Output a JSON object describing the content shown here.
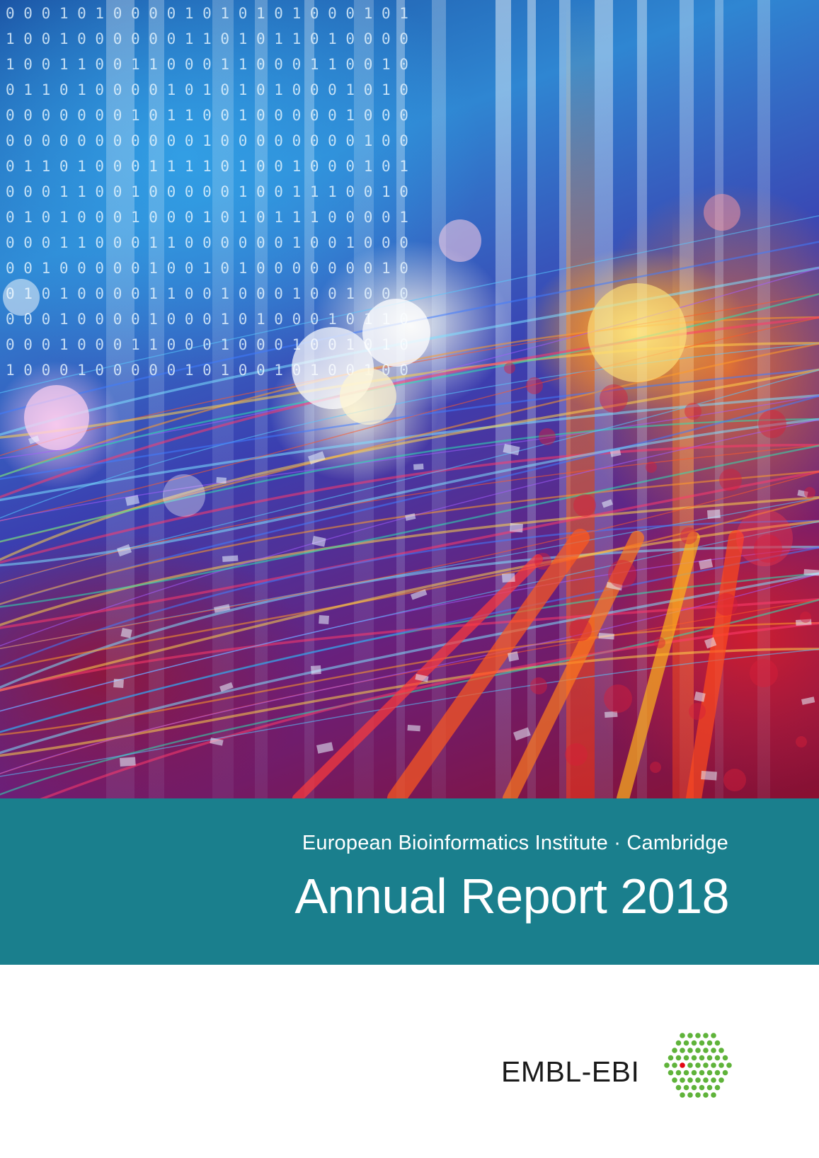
{
  "cover": {
    "subtitle": "European Bioinformatics Institute · Cambridge",
    "title": "Annual Report 2018",
    "band_color": "#1a7f8d"
  },
  "logo": {
    "text": "EMBL-EBI",
    "mark_color": "#5fb33a",
    "mark_accent_color": "#e30613",
    "icon": "hexagon-dot-grid-icon"
  },
  "image": {
    "binary_rows": [
      "0 0 0 1 0 1 0 0 0 0 1 0 1 0 1 0 1 0 0 0 1 0 1",
      "1 0 0 1 0 0 0 0 0 0 1 1 0 1 0 1 1 0 1 0 0 0 0",
      "1 0 0 1 1 0 0 1 1 0 0 0 1 1 0 0 0 1 1 0 0 1 0",
      "0 1 1 0 1 0 0 0 0 1 0 1 0 1 0 1 0 0 0 1 0 1 0",
      "0 0 0 0 0 0 0 1 0 1 1 0 0 1 0 0 0 0 0 1 0 0 0",
      "0 0 0 0 0 0 0 0 0 0 0 1 0 0 0 0 0 0 0 0 1 0 0",
      "0 1 1 0 1 0 0 0 1 1 1 1 0 1 0 0 1 0 0 0 1 0 1",
      "0 0 0 1 1 0 0 1 0 0 0 0 0 1 0 0 1 1 1 0 0 1 0",
      "0 1 0 1 0 0 0 1 0 0 0 1 0 1 0 1 1 1 0 0 0 0 1",
      "0 0 0 1 1 0 0 0 1 1 0 0 0 0 0 0 1 0 0 1 0 0 0",
      "0 0 1 0 0 0 0 0 1 0 0 1 0 1 0 0 0 0 0 0 0 1 0",
      "0 1 0 1 0 0 0 0 1 1 0 0 1 0 0 0 1 0 0 1 0 0 0",
      "0 0 0 1 0 0 0 0 1 0 0 0 1 0 1 0 0 0 1 0 1 1 0",
      "0 0 0 1 0 0 0 1 1 0 0 0 1 0 0 0 1 0 0 1 0 1 0",
      "1 0 0 0 1 0 0 0 0 0 1 0 1 0 0 1 0 1 0 0 1 0 0"
    ]
  }
}
